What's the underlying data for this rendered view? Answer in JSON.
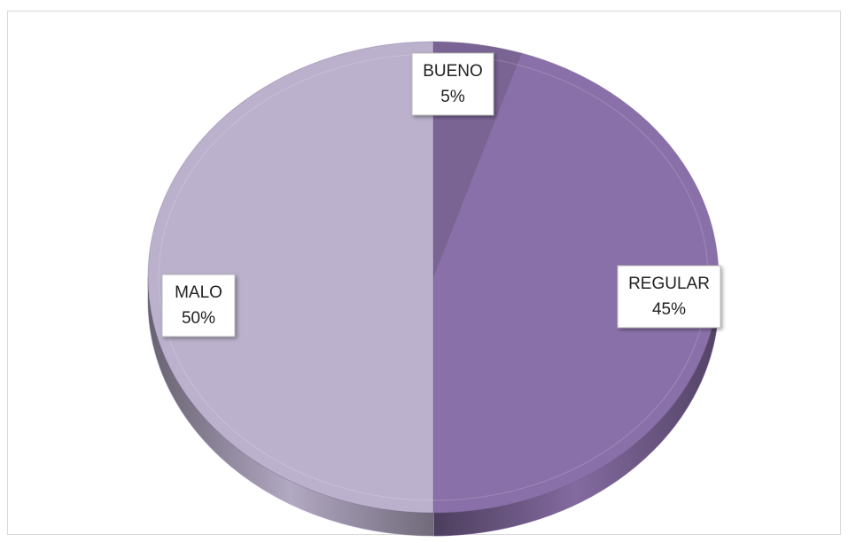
{
  "chart_data": {
    "type": "pie",
    "categories": [
      "BUENO",
      "REGULAR",
      "MALO"
    ],
    "values": [
      5,
      45,
      50
    ],
    "value_labels": [
      "5%",
      "45%",
      "50%"
    ],
    "colors": [
      "#7a6494",
      "#8a70a8",
      "#bbb1cc"
    ]
  }
}
